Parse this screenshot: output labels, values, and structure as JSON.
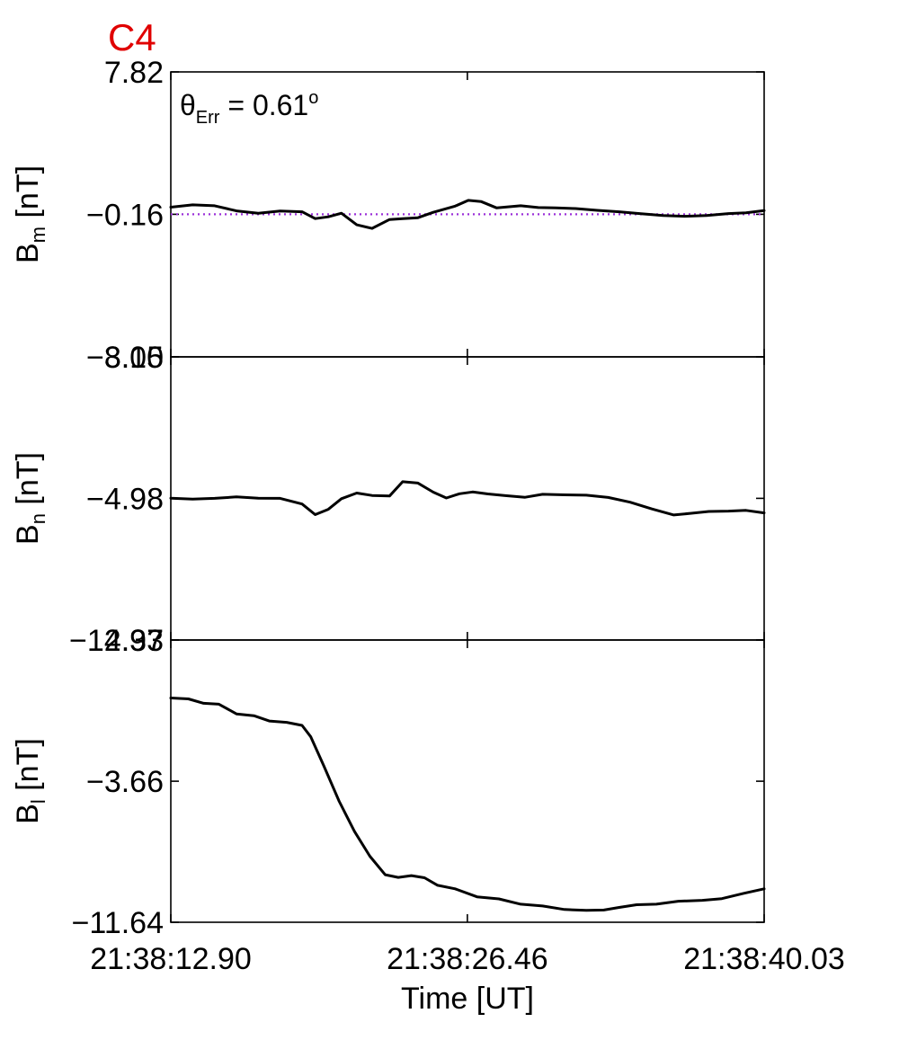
{
  "chart_data": {
    "type": "line",
    "title": "C4",
    "annotation": {
      "symbol": "θ",
      "subscript": "Err",
      "text": " =  0.61",
      "superscript": "o"
    },
    "xlabel": "Time [UT]",
    "x_tick_labels": [
      "21:38:12.90",
      "21:38:26.46",
      "21:38:40.03"
    ],
    "xlim": [
      0,
      27.13
    ],
    "x_tick_values": [
      0,
      13.56,
      27.13
    ],
    "panels": [
      {
        "id": "bm",
        "ylabel": {
          "base": "B",
          "sub": "m",
          "unit": " [nT]"
        },
        "ylim": [
          -8.15,
          7.82
        ],
        "yticks": [
          7.82,
          -0.16,
          -8.15
        ],
        "ytick_labels": [
          "7.82",
          "−0.16",
          "−8.15"
        ],
        "reference_line": {
          "y": -0.16,
          "color": "#9a2fd8",
          "style": "dotted"
        },
        "series": [
          {
            "color": "#000000",
            "x": [
              0,
              1,
              2,
              3,
              4,
              5,
              6,
              6.6,
              7.2,
              7.8,
              8.5,
              9.2,
              10,
              10.6,
              11.3,
              12,
              13,
              13.6,
              14.2,
              14.9,
              16,
              16.8,
              17.6,
              18.5,
              19.5,
              20.5,
              21.5,
              22.5,
              23.5,
              24.5,
              25.5,
              26.3,
              27.13
            ],
            "y": [
              0.24,
              0.37,
              0.32,
              0.03,
              -0.1,
              0.02,
              -0.02,
              -0.4,
              -0.3,
              -0.1,
              -0.75,
              -0.95,
              -0.45,
              -0.4,
              -0.35,
              -0.05,
              0.3,
              0.62,
              0.55,
              0.2,
              0.32,
              0.22,
              0.2,
              0.16,
              0.06,
              -0.02,
              -0.13,
              -0.23,
              -0.27,
              -0.23,
              -0.12,
              -0.08,
              0.05
            ]
          }
        ]
      },
      {
        "id": "bn",
        "ylabel": {
          "base": "B",
          "sub": "n",
          "unit": " [nT]"
        },
        "ylim": [
          -12.97,
          3.0
        ],
        "yticks": [
          3.0,
          -4.98,
          -12.97
        ],
        "ytick_labels": [
          "3.00",
          "−4.98",
          "−12.97"
        ],
        "series": [
          {
            "color": "#000000",
            "x": [
              0,
              1,
              2,
              3,
              4,
              5,
              6,
              6.6,
              7.2,
              7.8,
              8.5,
              9.2,
              10,
              10.6,
              11.3,
              12,
              12.6,
              13.2,
              13.8,
              14.5,
              15.3,
              16.2,
              17,
              18,
              19,
              20,
              21,
              22,
              23,
              23.8,
              24.6,
              25.5,
              26.3,
              27.13
            ],
            "y": [
              -4.97,
              -5.02,
              -4.98,
              -4.9,
              -4.97,
              -4.98,
              -5.3,
              -5.9,
              -5.6,
              -5.0,
              -4.68,
              -4.82,
              -4.85,
              -4.04,
              -4.12,
              -4.63,
              -4.96,
              -4.72,
              -4.62,
              -4.73,
              -4.83,
              -4.92,
              -4.75,
              -4.78,
              -4.8,
              -4.93,
              -5.2,
              -5.58,
              -5.92,
              -5.82,
              -5.72,
              -5.7,
              -5.66,
              -5.8
            ]
          }
        ]
      },
      {
        "id": "bl",
        "ylabel": {
          "base": "B",
          "sub": "l",
          "unit": " [nT]"
        },
        "ylim": [
          -11.64,
          4.33
        ],
        "yticks": [
          4.33,
          -3.66,
          -11.64
        ],
        "ytick_labels": [
          "4.33",
          "−3.66",
          "−11.64"
        ],
        "series": [
          {
            "color": "#000000",
            "x": [
              0,
              0.8,
              1.5,
              2.2,
              3,
              3.8,
              4.5,
              5.3,
              6,
              6.4,
              7,
              7.7,
              8.4,
              9.1,
              9.8,
              10.4,
              11,
              11.6,
              12.2,
              13,
              14,
              15,
              16,
              17,
              18,
              19,
              19.8,
              20.5,
              21.3,
              22.2,
              23.2,
              24.3,
              25.2,
              26.2,
              27.13
            ],
            "y": [
              1.05,
              1.0,
              0.75,
              0.7,
              0.15,
              0.05,
              -0.25,
              -0.33,
              -0.5,
              -1.15,
              -2.8,
              -4.8,
              -6.5,
              -7.9,
              -8.95,
              -9.1,
              -9.0,
              -9.12,
              -9.55,
              -9.75,
              -10.2,
              -10.32,
              -10.62,
              -10.72,
              -10.92,
              -10.97,
              -10.95,
              -10.8,
              -10.65,
              -10.62,
              -10.45,
              -10.4,
              -10.3,
              -10.0,
              -9.75
            ]
          }
        ]
      }
    ],
    "legend": "none",
    "grid": false
  }
}
